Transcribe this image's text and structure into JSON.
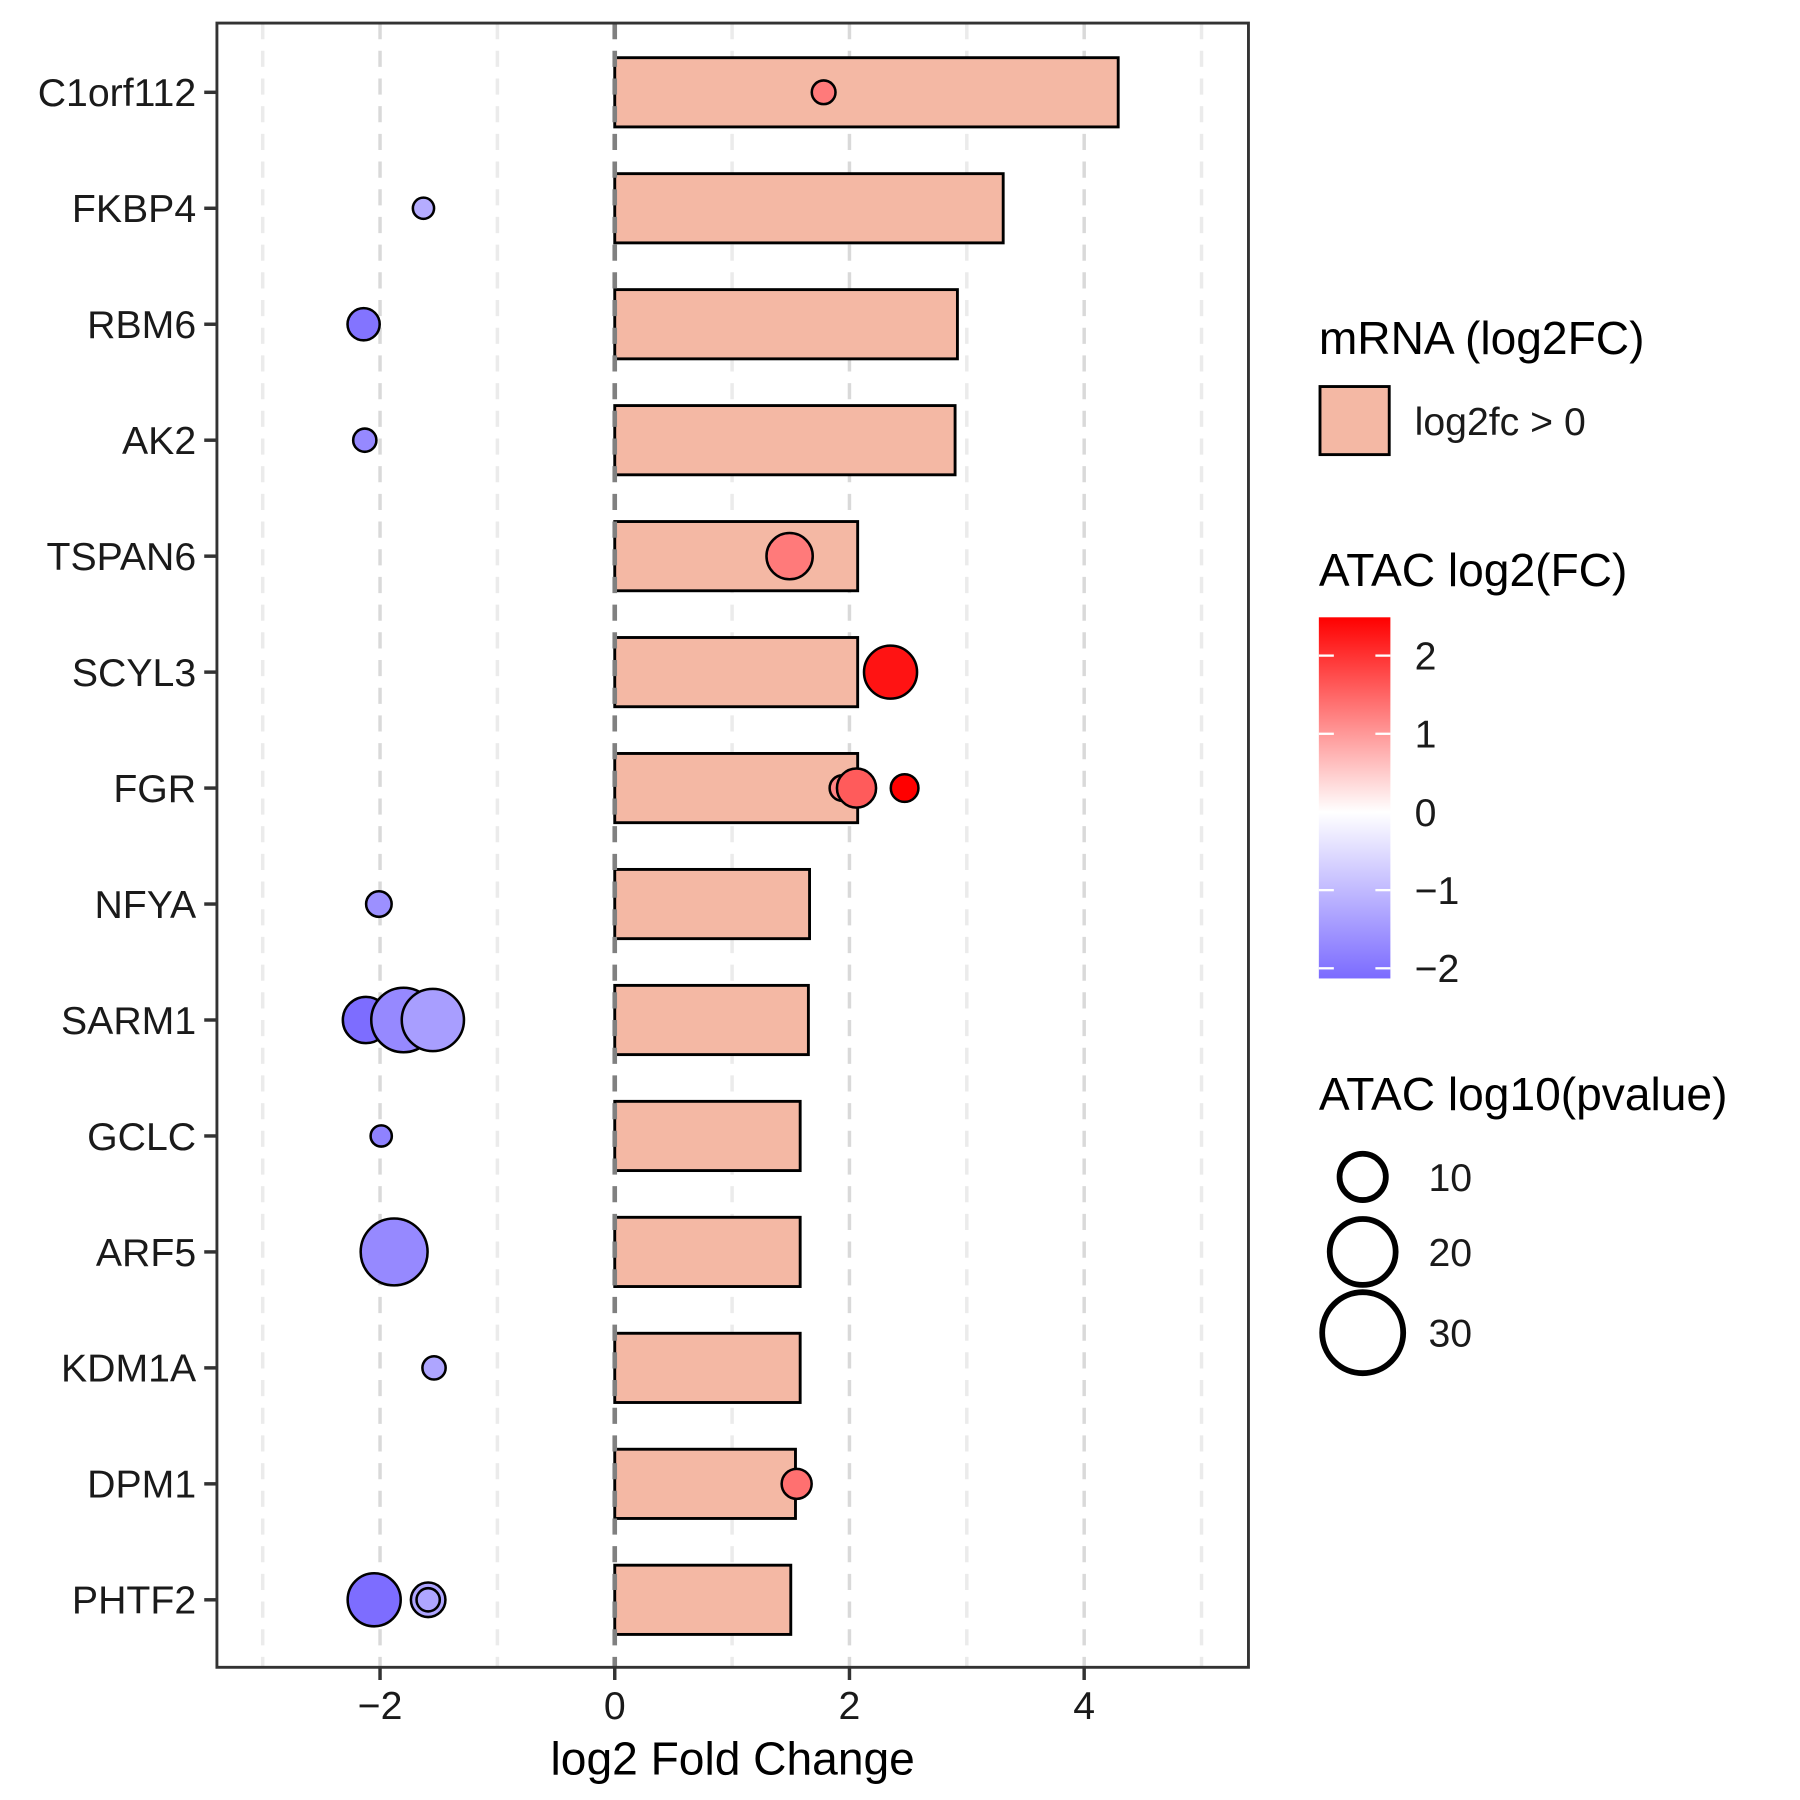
{
  "chart_data": {
    "type": "bar",
    "xlabel": "log2 Fold Change",
    "ylabel": "",
    "xlim": [
      -3.39,
      5.4
    ],
    "x_ticks": [
      -2,
      0,
      2,
      4
    ],
    "x_tick_labels": [
      "−2",
      "0",
      "2",
      "4"
    ],
    "grid": "vertical dashed",
    "categories": [
      "C1orf112",
      "FKBP4",
      "RBM6",
      "AK2",
      "TSPAN6",
      "SCYL3",
      "FGR",
      "NFYA",
      "SARM1",
      "GCLC",
      "ARF5",
      "KDM1A",
      "DPM1",
      "PHTF2"
    ],
    "series": [
      {
        "name": "mRNA (log2FC)",
        "kind": "bar",
        "color": "#F4B8A4",
        "values": [
          4.29,
          3.31,
          2.92,
          2.9,
          2.07,
          2.07,
          2.07,
          1.66,
          1.65,
          1.58,
          1.58,
          1.58,
          1.54,
          1.5
        ]
      },
      {
        "name": "ATAC",
        "kind": "point",
        "points": [
          {
            "gene": "C1orf112",
            "x": 1.78,
            "atac_fc": 1.3,
            "pval": 2.5
          },
          {
            "gene": "FKBP4",
            "x": -1.63,
            "atac_fc": -1.2,
            "pval": 2
          },
          {
            "gene": "RBM6",
            "x": -2.14,
            "atac_fc": -2.0,
            "pval": 4.6
          },
          {
            "gene": "AK2",
            "x": -2.13,
            "atac_fc": -1.7,
            "pval": 2.4
          },
          {
            "gene": "TSPAN6",
            "x": 1.49,
            "atac_fc": 1.3,
            "pval": 9.5
          },
          {
            "gene": "SCYL3",
            "x": 2.35,
            "atac_fc": 2.3,
            "pval": 12.5
          },
          {
            "gene": "FGR",
            "x": 1.94,
            "atac_fc": 1.2,
            "pval": 2.9
          },
          {
            "gene": "FGR",
            "x": 2.06,
            "atac_fc": 1.6,
            "pval": 6.8
          },
          {
            "gene": "FGR",
            "x": 2.47,
            "atac_fc": 2.5,
            "pval": 3.4
          },
          {
            "gene": "NFYA",
            "x": -2.01,
            "atac_fc": -1.6,
            "pval": 2.9
          },
          {
            "gene": "SARM1",
            "x": -2.12,
            "atac_fc": -2.1,
            "pval": 9.5
          },
          {
            "gene": "SARM1",
            "x": -1.8,
            "atac_fc": -1.7,
            "pval": 18.5
          },
          {
            "gene": "SARM1",
            "x": -1.55,
            "atac_fc": -1.4,
            "pval": 17.2
          },
          {
            "gene": "GCLC",
            "x": -1.99,
            "atac_fc": -1.8,
            "pval": 2
          },
          {
            "gene": "ARF5",
            "x": -1.88,
            "atac_fc": -1.7,
            "pval": 19.9
          },
          {
            "gene": "KDM1A",
            "x": -1.54,
            "atac_fc": -1.3,
            "pval": 2.4
          },
          {
            "gene": "DPM1",
            "x": 1.55,
            "atac_fc": 1.4,
            "pval": 4
          },
          {
            "gene": "PHTF2",
            "x": -2.05,
            "atac_fc": -2.1,
            "pval": 12.5
          },
          {
            "gene": "PHTF2",
            "x": -1.59,
            "atac_fc": -1.3,
            "pval": 5.3
          },
          {
            "gene": "PHTF2",
            "x": -1.59,
            "atac_fc": -1.3,
            "pval": 2.4
          }
        ]
      }
    ],
    "legend": {
      "placement": "right",
      "fill_title": "mRNA (log2FC)",
      "fill_label": "log2fc > 0",
      "color_title": "ATAC log2(FC)",
      "color_range": [
        -2.13,
        2.49
      ],
      "color_low": "#7B6BFF",
      "color_mid": "#FFFFFF",
      "color_high": "#FF0000",
      "color_ticks": [
        2,
        1,
        0,
        -1,
        -2
      ],
      "color_tick_labels": [
        "2",
        "1",
        "0",
        "−1",
        "−2"
      ],
      "size_title": "ATAC log10(pvalue)",
      "size_values": [
        10,
        20,
        30
      ],
      "size_labels": [
        "10",
        "20",
        "30"
      ]
    }
  }
}
